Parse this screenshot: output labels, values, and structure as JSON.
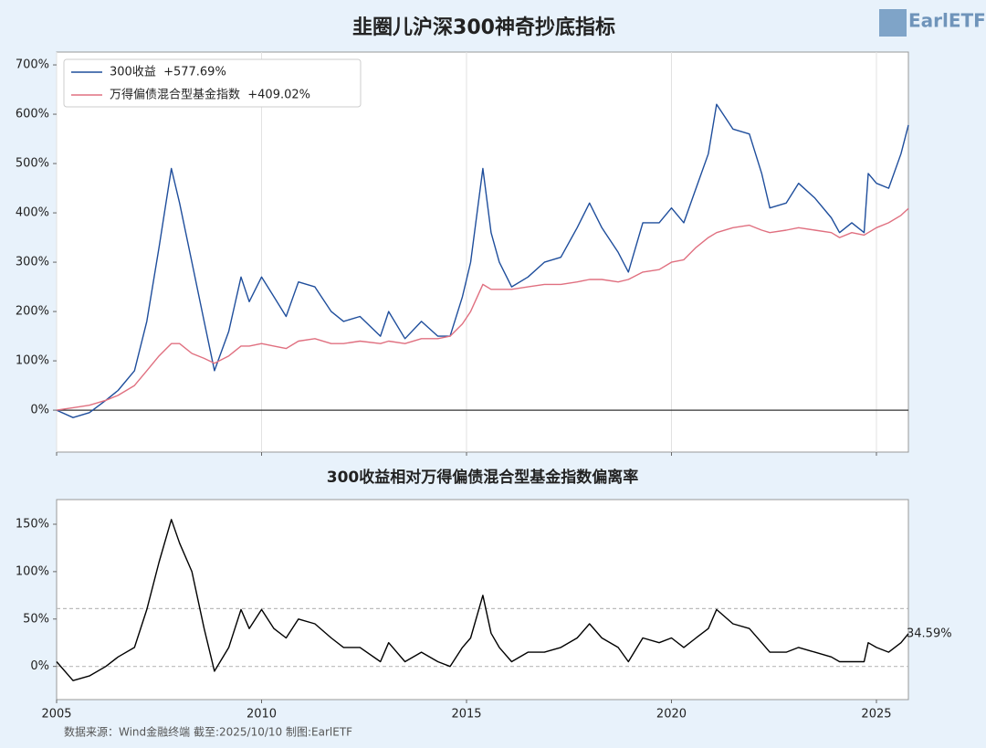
{
  "title": "韭圈儿沪深300神奇抄底指标",
  "logo": "EarlETF",
  "source": "数据来源：Wind金融终端 截至:2025/10/10 制图:EarlETF",
  "chart_data": [
    {
      "type": "line",
      "legend": "upper left",
      "xgrid": true,
      "show_xtick_labels": false,
      "x": [
        2005.0,
        2005.4,
        2005.8,
        2006.2,
        2006.5,
        2006.9,
        2007.2,
        2007.5,
        2007.8,
        2008.0,
        2008.3,
        2008.6,
        2008.85,
        2009.2,
        2009.5,
        2009.7,
        2010.0,
        2010.3,
        2010.6,
        2010.9,
        2011.3,
        2011.7,
        2012.0,
        2012.4,
        2012.9,
        2013.1,
        2013.5,
        2013.9,
        2014.3,
        2014.6,
        2014.9,
        2015.1,
        2015.4,
        2015.6,
        2015.8,
        2016.1,
        2016.5,
        2016.9,
        2017.3,
        2017.7,
        2018.0,
        2018.3,
        2018.7,
        2018.95,
        2019.3,
        2019.7,
        2020.0,
        2020.3,
        2020.6,
        2020.9,
        2021.1,
        2021.5,
        2021.9,
        2022.2,
        2022.4,
        2022.8,
        2023.1,
        2023.5,
        2023.9,
        2024.1,
        2024.4,
        2024.7,
        2024.8,
        2025.0,
        2025.3,
        2025.6,
        2025.78
      ],
      "series": [
        {
          "name": "300收益  +577.69%",
          "color": "#1f4e9c",
          "values": [
            0,
            -15,
            -5,
            20,
            40,
            80,
            180,
            330,
            490,
            420,
            300,
            180,
            80,
            160,
            270,
            220,
            270,
            230,
            190,
            260,
            250,
            200,
            180,
            190,
            150,
            200,
            145,
            180,
            150,
            150,
            230,
            300,
            490,
            360,
            300,
            250,
            270,
            300,
            310,
            370,
            420,
            370,
            320,
            280,
            380,
            380,
            410,
            380,
            450,
            520,
            620,
            570,
            560,
            480,
            410,
            420,
            460,
            430,
            390,
            360,
            380,
            360,
            480,
            460,
            450,
            520,
            578
          ]
        },
        {
          "name": "万得偏债混合型基金指数  +409.02%",
          "color": "#e07080",
          "values": [
            0,
            5,
            10,
            20,
            30,
            50,
            80,
            110,
            135,
            135,
            115,
            105,
            95,
            110,
            130,
            130,
            135,
            130,
            125,
            140,
            145,
            135,
            135,
            140,
            135,
            140,
            135,
            145,
            145,
            150,
            175,
            200,
            255,
            245,
            245,
            245,
            250,
            255,
            255,
            260,
            265,
            265,
            260,
            265,
            280,
            285,
            300,
            305,
            330,
            350,
            360,
            370,
            375,
            365,
            360,
            365,
            370,
            365,
            360,
            350,
            360,
            355,
            360,
            370,
            380,
            395,
            409
          ]
        }
      ],
      "hlines": [
        {
          "value": 0,
          "color": "#333333",
          "dash": false
        }
      ],
      "xlim": [
        2005,
        2025.78
      ],
      "xticks": [
        2005,
        2010,
        2015,
        2020,
        2025
      ],
      "ylim": [
        -85,
        726
      ],
      "yticks": [
        {
          "value": 0,
          "label": "0%"
        },
        {
          "value": 100,
          "label": "100%"
        },
        {
          "value": 200,
          "label": "200%"
        },
        {
          "value": 300,
          "label": "300%"
        },
        {
          "value": 400,
          "label": "400%"
        },
        {
          "value": 500,
          "label": "500%"
        },
        {
          "value": 600,
          "label": "600%"
        },
        {
          "value": 700,
          "label": "700%"
        }
      ]
    },
    {
      "type": "line",
      "title": "300收益相对万得偏债混合型基金指数偏离率",
      "xgrid": false,
      "show_xtick_labels": true,
      "x": [
        2005.0,
        2005.4,
        2005.8,
        2006.2,
        2006.5,
        2006.9,
        2007.2,
        2007.5,
        2007.8,
        2008.0,
        2008.3,
        2008.6,
        2008.85,
        2009.2,
        2009.5,
        2009.7,
        2010.0,
        2010.3,
        2010.6,
        2010.9,
        2011.3,
        2011.7,
        2012.0,
        2012.4,
        2012.9,
        2013.1,
        2013.5,
        2013.9,
        2014.3,
        2014.6,
        2014.9,
        2015.1,
        2015.4,
        2015.6,
        2015.8,
        2016.1,
        2016.5,
        2016.9,
        2017.3,
        2017.7,
        2018.0,
        2018.3,
        2018.7,
        2018.95,
        2019.3,
        2019.7,
        2020.0,
        2020.3,
        2020.6,
        2020.9,
        2021.1,
        2021.5,
        2021.9,
        2022.2,
        2022.4,
        2022.8,
        2023.1,
        2023.5,
        2023.9,
        2024.1,
        2024.4,
        2024.7,
        2024.8,
        2025.0,
        2025.3,
        2025.6,
        2025.78
      ],
      "series": [
        {
          "color": "#000000",
          "values": [
            5,
            -15,
            -10,
            0,
            10,
            20,
            60,
            110,
            155,
            130,
            100,
            40,
            -5,
            20,
            60,
            40,
            60,
            40,
            30,
            50,
            45,
            30,
            20,
            20,
            5,
            25,
            5,
            15,
            5,
            0,
            20,
            30,
            75,
            35,
            20,
            5,
            15,
            15,
            20,
            30,
            45,
            30,
            20,
            5,
            30,
            25,
            30,
            20,
            30,
            40,
            60,
            45,
            40,
            25,
            15,
            15,
            20,
            15,
            10,
            5,
            5,
            5,
            25,
            20,
            15,
            25,
            34.59
          ]
        }
      ],
      "end_label": {
        "value": 34.59,
        "label": "34.59%"
      },
      "hlines": [
        {
          "value": 61,
          "color": "#bbbbbb",
          "dash": true
        },
        {
          "value": 0,
          "color": "#bbbbbb",
          "dash": true
        }
      ],
      "xlim": [
        2005,
        2025.78
      ],
      "xticks": [
        2005,
        2010,
        2015,
        2020,
        2025
      ],
      "ylim": [
        -35,
        176
      ],
      "yticks": [
        {
          "value": 0,
          "label": "0%"
        },
        {
          "value": 50,
          "label": "50%"
        },
        {
          "value": 100,
          "label": "100%"
        },
        {
          "value": 150,
          "label": "150%"
        }
      ]
    }
  ]
}
